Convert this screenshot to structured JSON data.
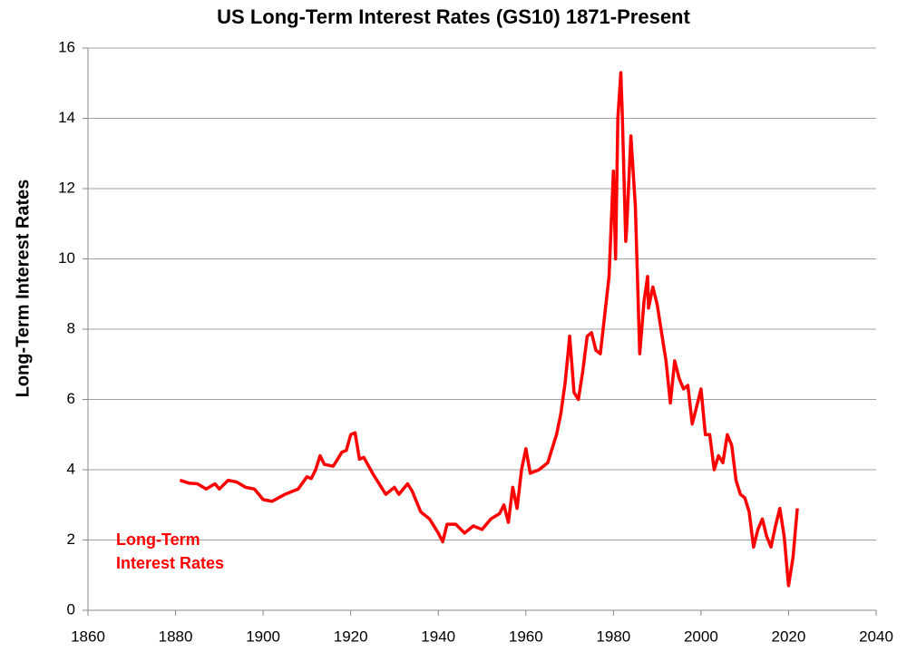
{
  "chart_data": {
    "type": "line",
    "title": "US Long-Term Interest Rates (GS10) 1871-Present",
    "y_label": "Long-Term Interest Rates",
    "xlim": [
      1860,
      2040
    ],
    "xticks": [
      1860,
      1880,
      1900,
      1920,
      1940,
      1960,
      1980,
      2000,
      2020,
      2040
    ],
    "ylim": [
      0,
      16
    ],
    "yticks": [
      0,
      2,
      4,
      6,
      8,
      10,
      12,
      14,
      16
    ],
    "grid": true,
    "legend": "lower left",
    "series": [
      {
        "name": "Long-Term Interest Rates",
        "color": "#ff0000",
        "x": [
          1881,
          1883,
          1885,
          1887,
          1889,
          1890,
          1892,
          1894,
          1896,
          1898,
          1900,
          1902,
          1905,
          1908,
          1910,
          1911,
          1912,
          1913,
          1914,
          1916,
          1918,
          1919,
          1920,
          1921,
          1922,
          1923,
          1925,
          1927,
          1928,
          1930,
          1931,
          1933,
          1934,
          1936,
          1938,
          1940,
          1941,
          1942,
          1944,
          1946,
          1948,
          1950,
          1952,
          1954,
          1955,
          1956,
          1957,
          1958,
          1959,
          1960,
          1961,
          1963,
          1965,
          1966,
          1967,
          1968,
          1969,
          1970,
          1971,
          1972,
          1973,
          1974,
          1975,
          1976,
          1977,
          1978,
          1979,
          1980,
          1980.5,
          1981,
          1981.7,
          1982,
          1982.8,
          1983,
          1984,
          1985,
          1986,
          1987,
          1987.8,
          1988,
          1989,
          1990,
          1991,
          1992,
          1993,
          1994,
          1995,
          1996,
          1997,
          1998,
          1999,
          2000,
          2001,
          2002,
          2003,
          2004,
          2005,
          2006,
          2007,
          2008,
          2009,
          2010,
          2011,
          2012,
          2013,
          2014,
          2015,
          2016,
          2017,
          2018,
          2019,
          2020,
          2021,
          2022
        ],
        "values": [
          3.7,
          3.62,
          3.6,
          3.45,
          3.6,
          3.45,
          3.7,
          3.65,
          3.5,
          3.45,
          3.15,
          3.1,
          3.3,
          3.45,
          3.8,
          3.75,
          4.0,
          4.4,
          4.15,
          4.1,
          4.5,
          4.55,
          5.0,
          5.05,
          4.3,
          4.35,
          3.9,
          3.5,
          3.3,
          3.5,
          3.3,
          3.6,
          3.4,
          2.8,
          2.6,
          2.2,
          1.95,
          2.45,
          2.45,
          2.2,
          2.4,
          2.3,
          2.6,
          2.75,
          3.0,
          2.5,
          3.5,
          2.9,
          4.0,
          4.6,
          3.9,
          4.0,
          4.2,
          4.6,
          5.0,
          5.6,
          6.5,
          7.8,
          6.2,
          6.0,
          6.8,
          7.8,
          7.9,
          7.4,
          7.3,
          8.4,
          9.5,
          12.5,
          10.0,
          14.0,
          15.3,
          14.2,
          10.5,
          10.8,
          13.5,
          11.5,
          7.3,
          8.8,
          9.5,
          8.6,
          9.2,
          8.7,
          7.9,
          7.1,
          5.9,
          7.1,
          6.6,
          6.3,
          6.4,
          5.3,
          5.8,
          6.3,
          5.0,
          5.0,
          4.0,
          4.4,
          4.2,
          5.0,
          4.7,
          3.7,
          3.3,
          3.2,
          2.8,
          1.8,
          2.3,
          2.6,
          2.1,
          1.8,
          2.4,
          2.9,
          2.1,
          0.7,
          1.5,
          2.9
        ]
      }
    ]
  }
}
